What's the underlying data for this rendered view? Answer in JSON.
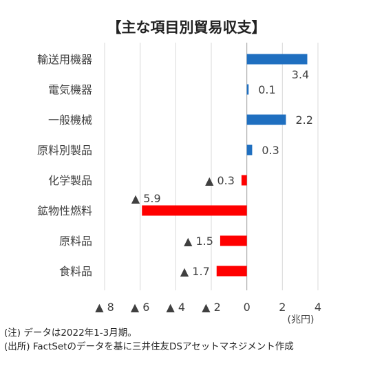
{
  "chart_data": {
    "type": "bar",
    "orientation": "horizontal",
    "title": "【主な項目別貿易収支】",
    "unit_label": "(兆円)",
    "categories": [
      "輸送用機器",
      "電気機器",
      "一般機械",
      "原料別製品",
      "化学製品",
      "鉱物性燃料",
      "原料品",
      "食料品"
    ],
    "values": [
      3.4,
      0.1,
      2.2,
      0.3,
      -0.3,
      -5.9,
      -1.5,
      -1.7
    ],
    "value_labels": [
      "3.4",
      "0.1",
      "2.2",
      "0.3",
      "▲ 0.3",
      "▲ 5.9",
      "▲ 1.5",
      "▲ 1.7"
    ],
    "xlim": [
      -8,
      4
    ],
    "x_ticks": [
      -8,
      -6,
      -4,
      -2,
      0,
      2,
      4
    ],
    "x_tick_labels": [
      "▲ 8",
      "▲ 6",
      "▲ 4",
      "▲ 2",
      "0",
      "2",
      "4"
    ],
    "grid": true,
    "colors": {
      "positive": "#1f6fc0",
      "negative": "#ff0000",
      "grid": "#d9d9d9"
    }
  },
  "notes": {
    "note1": "(注) データは2022年1-3月期。",
    "note2": "(出所) FactSetのデータを基に三井住友DSアセットマネジメント作成"
  }
}
